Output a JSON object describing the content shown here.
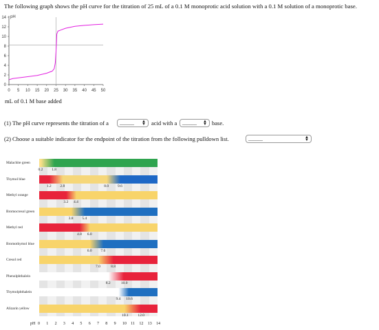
{
  "question": "The following graph shows the pH curve for the titration of 25 mL of a 0.1 M monoprotic acid solution with a 0.1 M solution of a monoprotic base.",
  "chart_data": {
    "type": "line",
    "ylabel": "pH",
    "xlabel": "mL of 0.1 M base added",
    "ylim": [
      0,
      14
    ],
    "xlim": [
      0,
      50
    ],
    "yticks": [
      "14",
      "12",
      "10",
      "8",
      "6",
      "4",
      "2",
      "0"
    ],
    "xticks": [
      "0",
      "5",
      "10",
      "15",
      "20",
      "25",
      "30",
      "35",
      "40",
      "45",
      "50"
    ],
    "equivalence_lines": {
      "x": 25,
      "y": 8.2
    },
    "series": [
      {
        "color": "#e21ee0",
        "points": [
          [
            0,
            1.0
          ],
          [
            2,
            1.25
          ],
          [
            5,
            1.4
          ],
          [
            10,
            1.65
          ],
          [
            15,
            1.9
          ],
          [
            20,
            2.35
          ],
          [
            23,
            2.8
          ],
          [
            24,
            3.3
          ],
          [
            24.6,
            4.5
          ],
          [
            25,
            7.0
          ],
          [
            25.4,
            10.5
          ],
          [
            26,
            11.1
          ],
          [
            28,
            11.4
          ],
          [
            30,
            11.7
          ],
          [
            35,
            12.1
          ],
          [
            40,
            12.3
          ],
          [
            45,
            12.45
          ],
          [
            50,
            12.55
          ]
        ]
      }
    ]
  },
  "q1": {
    "prefix": "(1) The pH curve represents the titration of a",
    "mid": "acid with a",
    "suffix": "base.",
    "select1_value": "______",
    "select2_value": "______"
  },
  "q2": {
    "text": "(2) Choose a suitable indicator for the endpoint of the titration from the following pulldown list.",
    "select_value": "______"
  },
  "indicator_chart": {
    "ph_label": "pH",
    "ph_ticks": [
      "0",
      "1",
      "2",
      "3",
      "4",
      "5",
      "6",
      "7",
      "8",
      "9",
      "10",
      "11",
      "12",
      "13",
      "14"
    ],
    "indicators": [
      {
        "name": "Malachite green",
        "low": "0.2",
        "high": "1.8",
        "lowv": 0.2,
        "highv": 1.8,
        "c1": "#fbe08a",
        "c2": "#2fa44f",
        "cmix": "#b8cf6a",
        "cfull2": "#5cbf6a"
      },
      {
        "name": "Thymol blue",
        "low": "1.2",
        "high": "2.8",
        "lowv": 1.2,
        "highv": 2.8,
        "low2": "8.0",
        "high2": "9.6",
        "low2v": 8.0,
        "high2v": 9.6,
        "c1": "#e8233b",
        "c2": "#f6d77a",
        "c3": "#1e68c6"
      },
      {
        "name": "Methyl orange",
        "low": "3.2",
        "high": "4.4",
        "lowv": 3.2,
        "highv": 4.4,
        "c1": "#e8233b",
        "c2": "#f8d46a"
      },
      {
        "name": "Bromocresol green",
        "low": "3.8",
        "high": "5.4",
        "lowv": 3.8,
        "highv": 5.4,
        "c1": "#f8d46a",
        "c2": "#1f6fc0"
      },
      {
        "name": "Methyl red",
        "low": "4.8",
        "high": "6.0",
        "lowv": 4.8,
        "highv": 6.0,
        "c1": "#e8233b",
        "c2": "#f8d46a"
      },
      {
        "name": "Bromothymol blue",
        "low": "6.0",
        "high": "7.6",
        "lowv": 6.0,
        "highv": 7.6,
        "c1": "#f8d46a",
        "c2": "#1f6fc0"
      },
      {
        "name": "Cresol red",
        "low": "7.0",
        "high": "8.8",
        "lowv": 7.0,
        "highv": 8.8,
        "c1": "#f8d46a",
        "c2": "#e8233b"
      },
      {
        "name": "Phenolphthalein",
        "low": "8.2",
        "high": "10.0",
        "lowv": 8.2,
        "highv": 10.0,
        "c1": "#ffffff",
        "c2": "#e8233b"
      },
      {
        "name": "Thymolphthalein",
        "low": "9.4",
        "high": "10.6",
        "lowv": 9.4,
        "highv": 10.6,
        "c1": "#ffffff",
        "c2": "#1f6fc0"
      },
      {
        "name": "Alizarin yellow",
        "low": "10.1",
        "high": "12.0",
        "lowv": 10.1,
        "highv": 12.0,
        "c1": "#f8d46a",
        "c2": "#e8233b"
      }
    ]
  }
}
